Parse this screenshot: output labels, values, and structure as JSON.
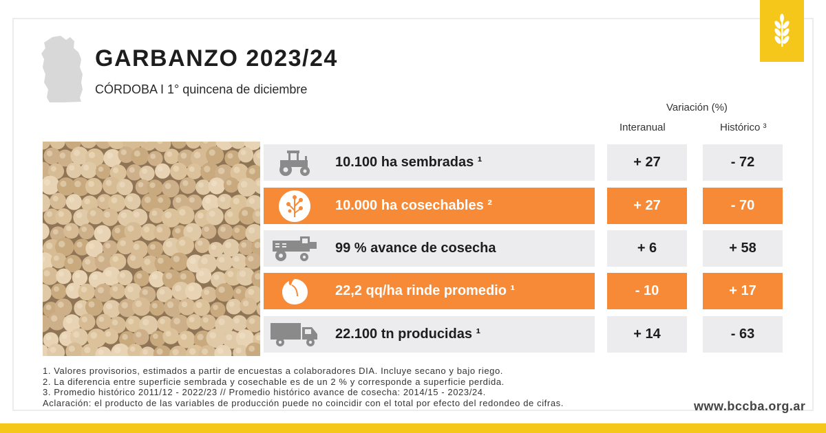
{
  "header": {
    "title": "GARBANZO 2023/24",
    "subtitle": "CÓRDOBA I 1° quincena de diciembre"
  },
  "table": {
    "variation_header": "Variación (%)",
    "col_interanual": "Interanual",
    "col_historico": "Histórico ³",
    "rows": [
      {
        "label": "10.100 ha sembradas ¹",
        "interanual": "+ 27",
        "historico": "- 72",
        "icon": "tractor-icon",
        "style": "gray"
      },
      {
        "label": "10.000 ha cosechables ²",
        "interanual": "+ 27",
        "historico": "- 70",
        "icon": "plant-icon",
        "style": "orange"
      },
      {
        "label": "99 % avance de cosecha",
        "interanual": "+ 6",
        "historico": "+ 58",
        "icon": "harvester-icon",
        "style": "gray"
      },
      {
        "label": "22,2 qq/ha rinde promedio ¹",
        "interanual": "- 10",
        "historico": "+ 17",
        "icon": "chickpea-icon",
        "style": "orange"
      },
      {
        "label": "22.100 tn producidas ¹",
        "interanual": "+ 14",
        "historico": "- 63",
        "icon": "truck-icon",
        "style": "gray"
      }
    ]
  },
  "notes": [
    "1. Valores provisorios, estimados a partir de encuestas a colaboradores DIA. Incluye secano y bajo riego.",
    "2. La diferencia entre superficie sembrada y cosechable es de un 2 % y corresponde a superficie perdida.",
    "3. Promedio histórico 2011/12 - 2022/23 // Promedio histórico avance de cosecha: 2014/15 - 2023/24.",
    "Aclaración: el producto de las variables de producción puede no coincidir con el total por efecto del redondeo de cifras."
  ],
  "footer": {
    "website": "www.bccba.org.ar"
  },
  "colors": {
    "orange": "#f78a37",
    "gray": "#ececee",
    "yellow": "#f6c71b"
  }
}
